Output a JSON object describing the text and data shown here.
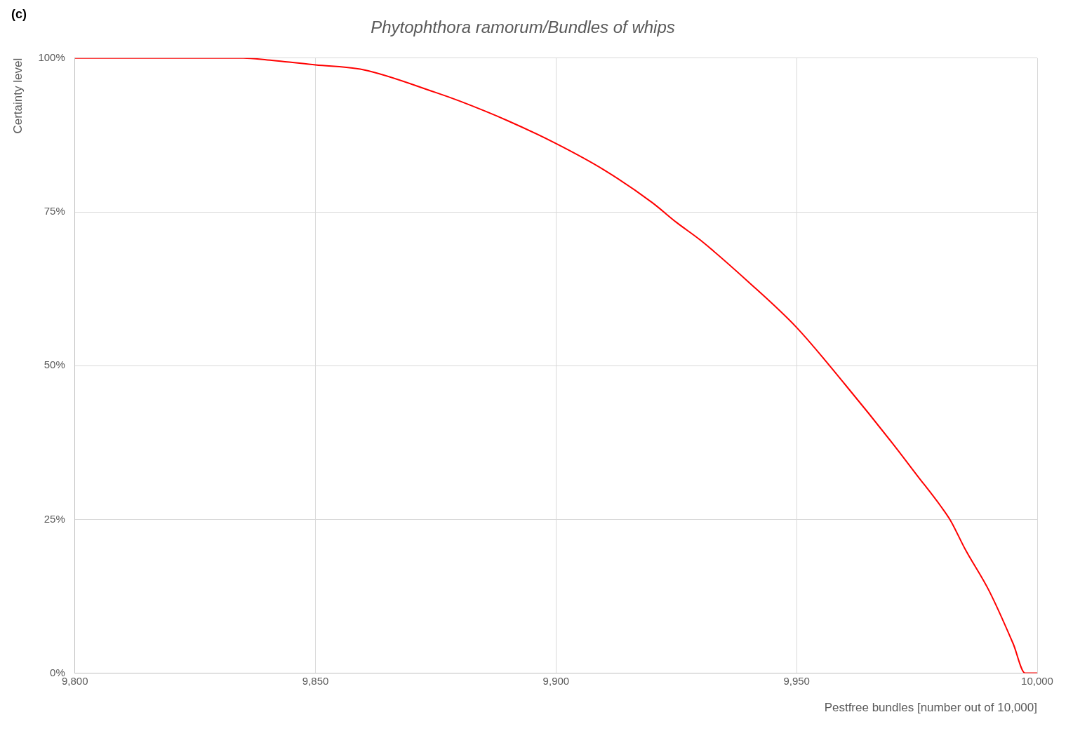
{
  "chart_data": {
    "type": "line",
    "title": "Phytophthora ramorum/Bundles of whips",
    "xlabel": "Pestfree bundles [number out of 10,000]",
    "ylabel": "Certainty level",
    "annotations": [
      "(c)"
    ],
    "x": [
      9800,
      9810,
      9820,
      9830,
      9835,
      9840,
      9850,
      9860,
      9875,
      9880,
      9890,
      9900,
      9910,
      9920,
      9925,
      9930,
      9940,
      9950,
      9960,
      9970,
      9975,
      9980,
      9982,
      9985,
      9990,
      9995,
      9997.5,
      10000
    ],
    "series": [
      {
        "color": "#ff0000",
        "values": [
          100,
          100,
          100,
          100,
          100,
          99.7,
          98.9,
          98.1,
          94.4,
          93,
          89.8,
          86.1,
          81.8,
          76.5,
          73.3,
          70.4,
          63.6,
          56.2,
          47,
          37.3,
          32.2,
          27.1,
          24.8,
          20.2,
          13.4,
          4.8,
          0,
          0
        ]
      }
    ],
    "xlim": [
      9800,
      10000
    ],
    "xticks": [
      {
        "value": 9800,
        "label": "9,800"
      },
      {
        "value": 9850,
        "label": "9,850"
      },
      {
        "value": 9900,
        "label": "9,900"
      },
      {
        "value": 9950,
        "label": "9,950"
      },
      {
        "value": 10000,
        "label": "10,000"
      }
    ],
    "ylim": [
      0,
      100
    ],
    "yticks": [
      {
        "value": 0,
        "label": "0%"
      },
      {
        "value": 25,
        "label": "25%"
      },
      {
        "value": 50,
        "label": "50%"
      },
      {
        "value": 75,
        "label": "75%"
      },
      {
        "value": 100,
        "label": "100%"
      }
    ],
    "grid": true,
    "legend": false,
    "marker": "none",
    "line_style": "solid"
  }
}
